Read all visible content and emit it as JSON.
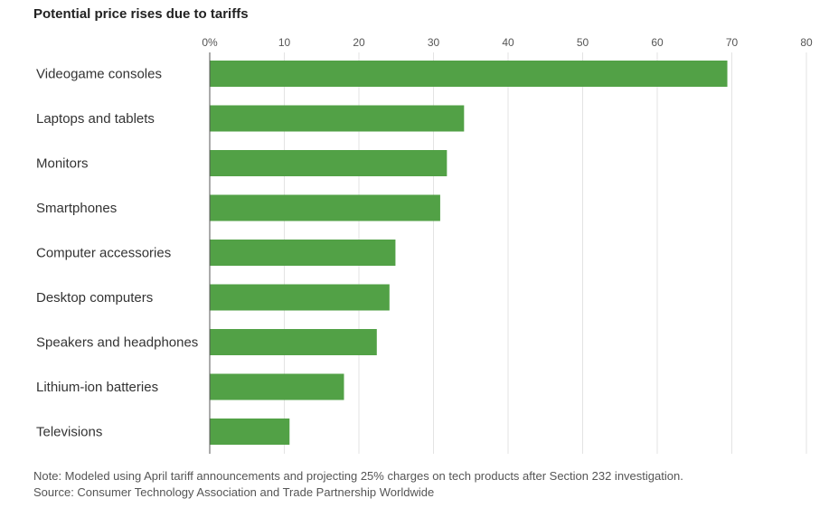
{
  "chart_data": {
    "type": "bar",
    "orientation": "horizontal",
    "title": "Potential price rises due to tariffs",
    "categories": [
      "Videogame consoles",
      "Laptops and tablets",
      "Monitors",
      "Smartphones",
      "Computer accessories",
      "Desktop computers",
      "Speakers and headphones",
      "Lithium-ion batteries",
      "Televisions"
    ],
    "values": [
      69.4,
      34.1,
      31.8,
      30.9,
      24.9,
      24.1,
      22.4,
      18.0,
      10.7
    ],
    "xlim": [
      0,
      80
    ],
    "xticks": [
      "0%",
      "10",
      "20",
      "30",
      "40",
      "50",
      "60",
      "70",
      "80"
    ],
    "xlabel": "",
    "ylabel": "",
    "grid": true,
    "bar_color": "#52a146"
  },
  "footer": {
    "note": "Note: Modeled using April tariff announcements and projecting 25% charges on tech products after Section 232 investigation.",
    "source": "Source: Consumer Technology Association and Trade Partnership Worldwide"
  }
}
